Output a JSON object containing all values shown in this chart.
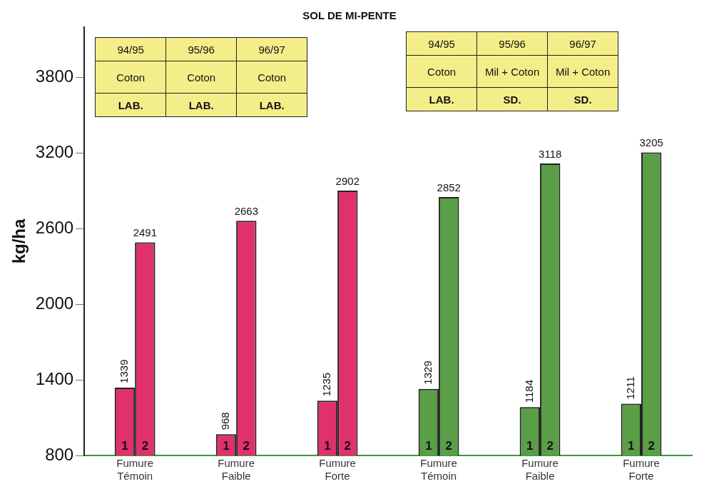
{
  "chart_data": {
    "type": "bar",
    "title": "SOL DE MI-PENTE",
    "ylabel": "kg/ha",
    "categories": [
      "Fumure Témoin",
      "Fumure Faible",
      "Fumure Forte",
      "Fumure Témoin",
      "Fumure Faible",
      "Fumure Forte"
    ],
    "series": [
      {
        "name": "1",
        "colors": [
          "#e0306e",
          "#e0306e",
          "#e0306e",
          "#5a9e48",
          "#5a9e48",
          "#5a9e48"
        ],
        "values": [
          1339,
          968,
          1235,
          1329,
          1184,
          1211
        ]
      },
      {
        "name": "2",
        "colors": [
          "#e0306e",
          "#e0306e",
          "#e0306e",
          "#5a9e48",
          "#5a9e48",
          "#5a9e48"
        ],
        "values": [
          2491,
          2663,
          2902,
          2852,
          3118,
          3205
        ]
      }
    ],
    "ylim": [
      800,
      4200
    ],
    "yticks": [
      800,
      1400,
      2000,
      2600,
      3200,
      3800
    ],
    "grid": false,
    "legend": false,
    "data_labels": true,
    "annotations": [
      "94/95",
      "95/96",
      "96/97",
      "Coton",
      "Coton",
      "Coton",
      "LAB.",
      "LAB.",
      "LAB.",
      "94/95",
      "95/96",
      "96/97",
      "Coton",
      "Mil + Coton",
      "Mil + Coton",
      "LAB.",
      "SD.",
      "SD."
    ]
  }
}
